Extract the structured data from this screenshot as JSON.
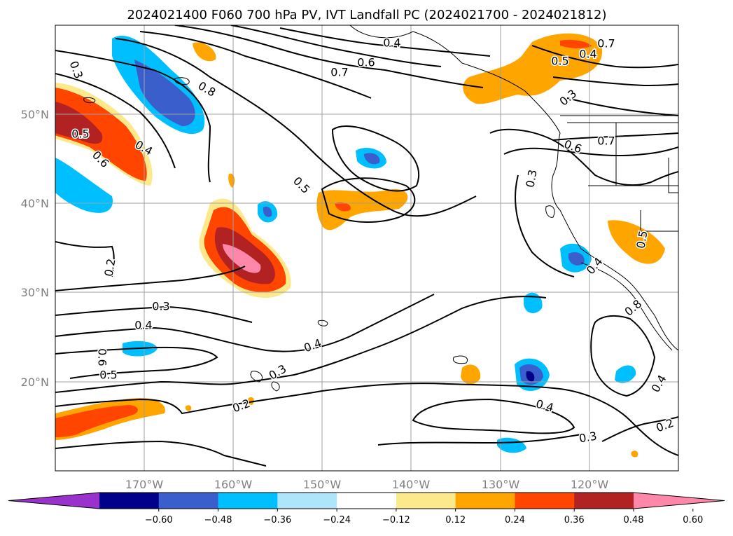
{
  "title": "2024021400 F060 700 hPa PV, IVT Landfall PC (2024021700 - 2024021812)",
  "map": {
    "lon_range": [
      -180,
      -110
    ],
    "lat_range": [
      10,
      60
    ],
    "lat_ticks": [
      {
        "value": 50,
        "label": "50°N"
      },
      {
        "value": 40,
        "label": "40°N"
      },
      {
        "value": 30,
        "label": "30°N"
      },
      {
        "value": 20,
        "label": "20°N"
      }
    ],
    "lon_ticks": [
      {
        "value": -170,
        "label": "170°W"
      },
      {
        "value": -160,
        "label": "160°W"
      },
      {
        "value": -150,
        "label": "150°W"
      },
      {
        "value": -140,
        "label": "140°W"
      },
      {
        "value": -130,
        "label": "130°W"
      },
      {
        "value": -120,
        "label": "120°W"
      }
    ],
    "gridlines": true,
    "contour_labels": [
      "0.3",
      "0.5",
      "0.6",
      "0.4",
      "0.8",
      "0.4",
      "0.6",
      "0.7",
      "0.5",
      "0.3",
      "0.2",
      "0.3",
      "0.4",
      "0.6",
      "0.5",
      "0.3",
      "0.4",
      "0.2",
      "0.4",
      "0.3",
      "0.2",
      "0.4",
      "0.6",
      "0.7",
      "0.3",
      "0.5",
      "0.4",
      "0.4",
      "0.5",
      "0.7",
      "0.8",
      "0.4",
      "0.3"
    ]
  },
  "colorbar": {
    "colors": [
      "#9932cc",
      "#00008b",
      "#3a5fcd",
      "#00bfff",
      "#afe5fa",
      "#ffffff",
      "#fce98b",
      "#ffa500",
      "#ff4500",
      "#b22222",
      "#ff88aa"
    ],
    "tick_labels": [
      "−0.60",
      "−0.48",
      "−0.36",
      "−0.24",
      "−0.12",
      "0.12",
      "0.24",
      "0.36",
      "0.48",
      "0.60"
    ]
  }
}
